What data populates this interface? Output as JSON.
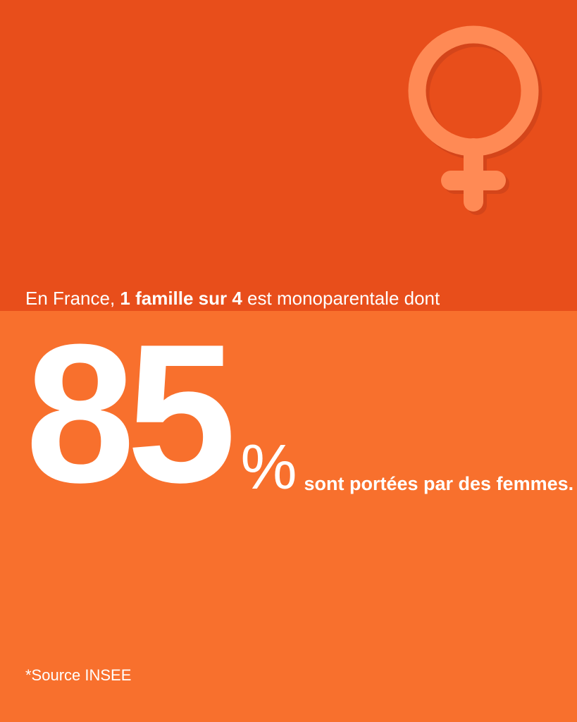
{
  "colors": {
    "top_background": "#E84E1B",
    "bottom_background": "#F8702D",
    "symbol": "#FF8A55",
    "symbol_shadow": "#D4451A",
    "text": "#FFFFFF"
  },
  "icon": "female-venus-icon",
  "intro": {
    "prefix": "En France, ",
    "highlight": "1 famille sur 4",
    "suffix": " est monoparentale dont"
  },
  "stat": {
    "value": "85",
    "unit": "%",
    "caption": "sont portées par des femmes."
  },
  "source": "*Source INSEE"
}
